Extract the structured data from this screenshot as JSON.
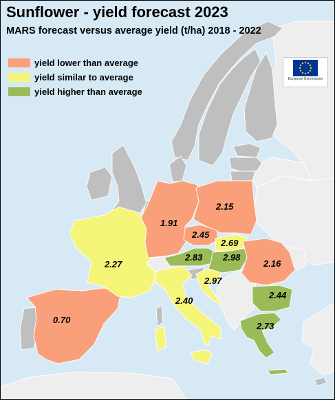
{
  "header": {
    "title": "Sunflower - yield forecast 2023",
    "subtitle": "MARS forecast versus average yield (t/ha) 2018 - 2022"
  },
  "legend": [
    {
      "label": "yield lower than average",
      "color": "#f9a07a"
    },
    {
      "label": "yield similar to average",
      "color": "#f5f57a"
    },
    {
      "label": "yield higher than average",
      "color": "#9bbb59"
    }
  ],
  "logo": {
    "text": "European Commission"
  },
  "colors": {
    "sea": "#d6e9f5",
    "land_no_data": "#bfbfbf",
    "land_outside": "#eeeeee",
    "lower": "#f9a07a",
    "similar": "#f5f57a",
    "higher": "#9bbb59",
    "eu_blue": "#003399",
    "eu_star": "#ffcc00"
  },
  "forecast": [
    {
      "country": "Spain",
      "value": "0.70",
      "category": "lower"
    },
    {
      "country": "France",
      "value": "2.27",
      "category": "similar"
    },
    {
      "country": "Germany",
      "value": "1.91",
      "category": "lower"
    },
    {
      "country": "Poland",
      "value": "2.15",
      "category": "lower"
    },
    {
      "country": "Czechia",
      "value": "2.45",
      "category": "lower"
    },
    {
      "country": "Slovakia",
      "value": "2.69",
      "category": "similar"
    },
    {
      "country": "Austria",
      "value": "2.83",
      "category": "higher"
    },
    {
      "country": "Hungary",
      "value": "2.98",
      "category": "higher"
    },
    {
      "country": "Romania",
      "value": "2.16",
      "category": "lower"
    },
    {
      "country": "Croatia",
      "value": "2.97",
      "category": "similar"
    },
    {
      "country": "Italy",
      "value": "2.40",
      "category": "similar"
    },
    {
      "country": "Bulgaria",
      "value": "2.44",
      "category": "higher"
    },
    {
      "country": "Greece",
      "value": "2.73",
      "category": "higher"
    }
  ]
}
